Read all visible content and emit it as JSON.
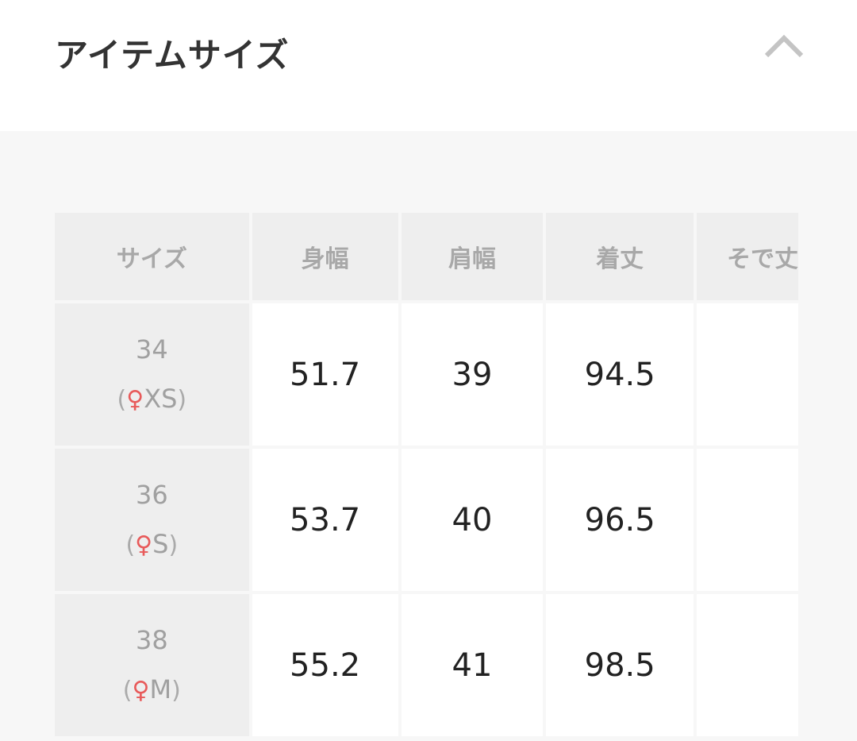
{
  "header": {
    "title": "アイテムサイズ",
    "collapse_icon": "chevron-up-icon"
  },
  "table": {
    "columns": [
      "サイズ",
      "身幅",
      "肩幅",
      "着丈",
      "そで丈"
    ],
    "rows": [
      {
        "size": "34",
        "label": "XS",
        "values": [
          "51.7",
          "39",
          "94.5",
          ""
        ]
      },
      {
        "size": "36",
        "label": "S",
        "values": [
          "53.7",
          "40",
          "96.5",
          ""
        ]
      },
      {
        "size": "38",
        "label": "M",
        "values": [
          "55.2",
          "41",
          "98.5",
          ""
        ]
      }
    ]
  },
  "colors": {
    "woman_icon": "#e85a5a"
  }
}
